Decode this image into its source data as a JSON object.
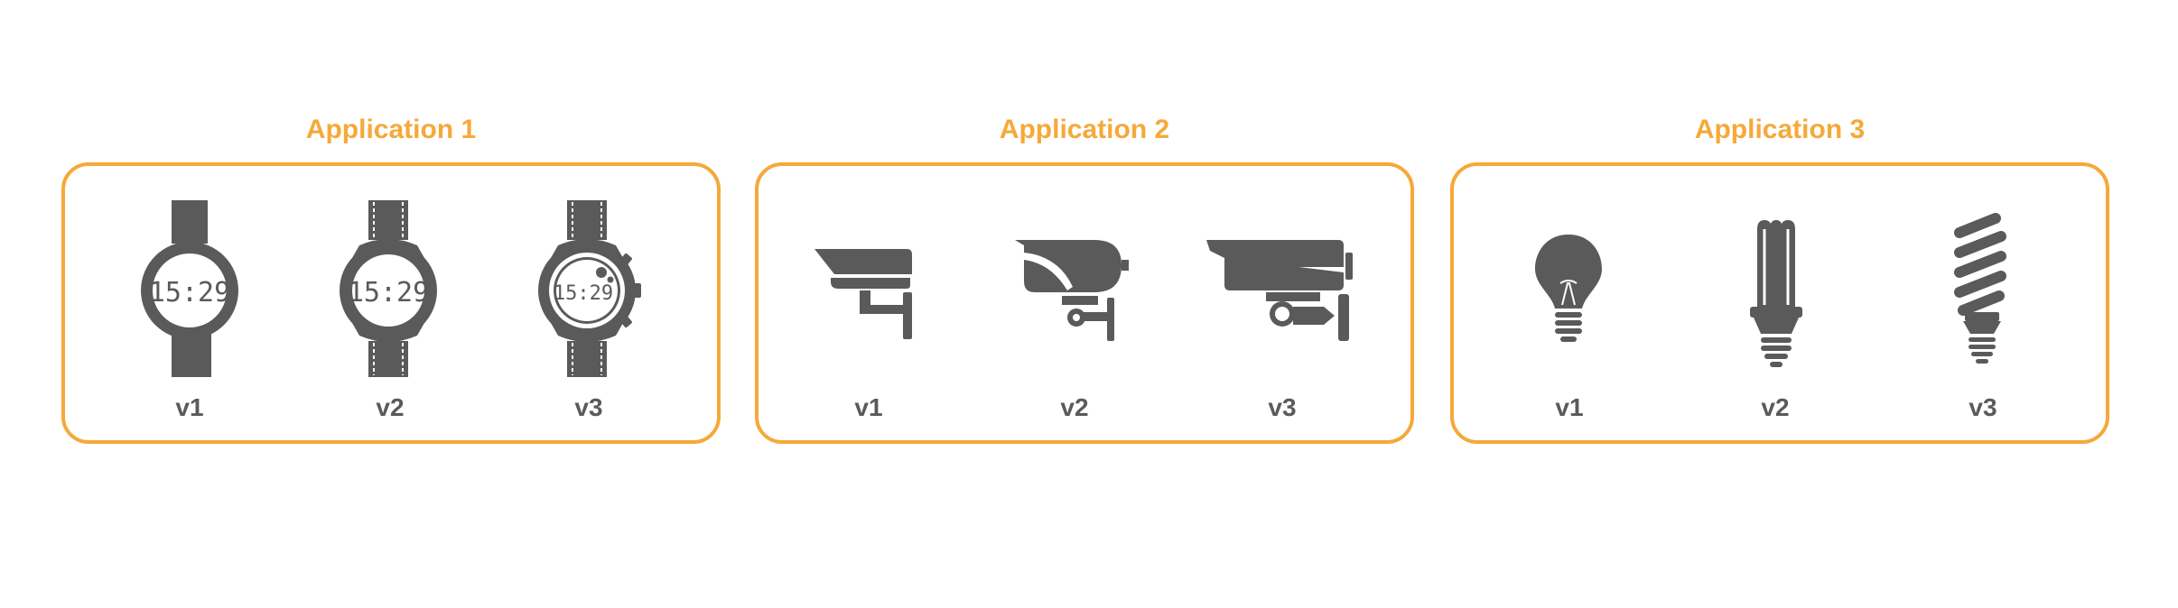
{
  "applications": [
    {
      "title": "Application 1",
      "versions": [
        "v1",
        "v2",
        "v3"
      ],
      "device": "smartwatch",
      "display_time": "15:29"
    },
    {
      "title": "Application 2",
      "versions": [
        "v1",
        "v2",
        "v3"
      ],
      "device": "security-camera"
    },
    {
      "title": "Application 3",
      "versions": [
        "v1",
        "v2",
        "v3"
      ],
      "device": "light-bulb"
    }
  ],
  "colors": {
    "accent": "#F5A93A",
    "icon": "#5a5a5a",
    "label": "#5a5a5a"
  }
}
